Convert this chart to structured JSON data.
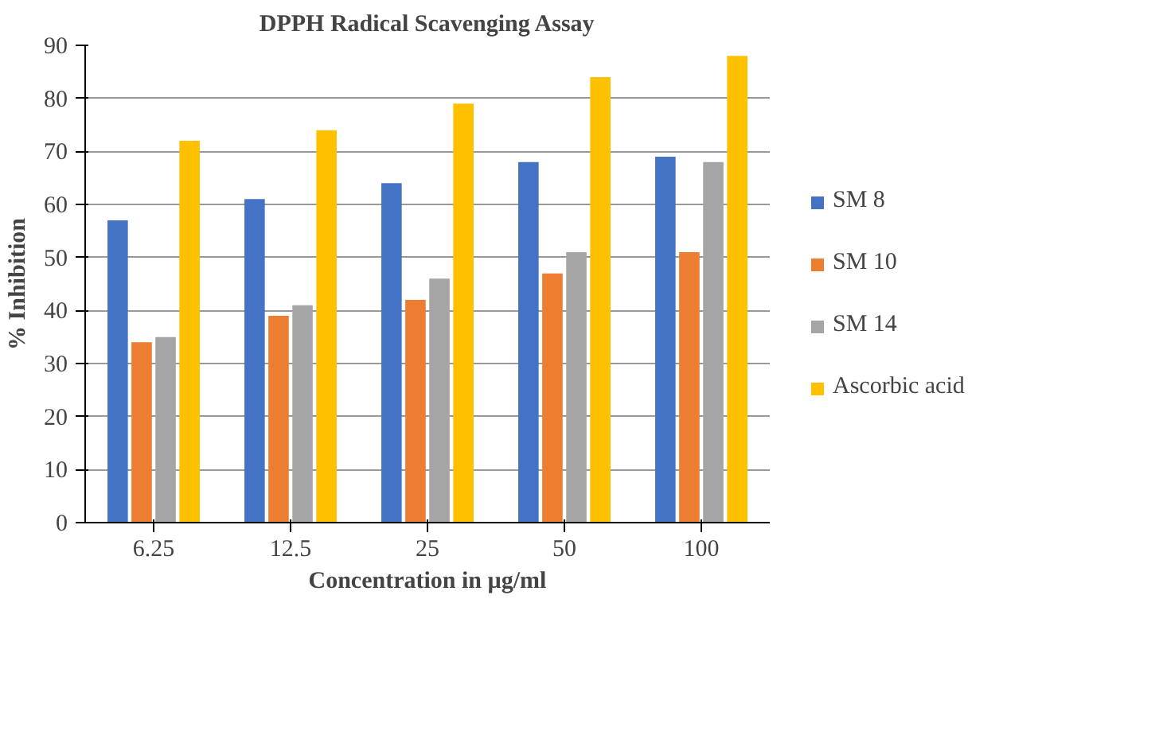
{
  "chart_data": {
    "type": "bar",
    "title": "DPPH Radical Scavenging Assay",
    "xlabel": "Concentration in µg/ml",
    "ylabel": "% Inhibition",
    "categories": [
      "6.25",
      "12.5",
      "25",
      "50",
      "100"
    ],
    "series": [
      {
        "name": "SM 8",
        "color": "#4472c4",
        "values": [
          57,
          61,
          64,
          68,
          69
        ]
      },
      {
        "name": "SM 10",
        "color": "#ed7d31",
        "values": [
          34,
          39,
          42,
          47,
          51
        ]
      },
      {
        "name": "SM 14",
        "color": "#a5a5a5",
        "values": [
          35,
          41,
          46,
          51,
          68
        ]
      },
      {
        "name": "Ascorbic acid",
        "color": "#ffc000",
        "values": [
          72,
          74,
          79,
          84,
          88
        ]
      }
    ],
    "ylim": [
      0,
      90
    ],
    "yticks": [
      0,
      10,
      20,
      30,
      40,
      50,
      60,
      70,
      80,
      90
    ],
    "grid": "y",
    "legend": "right"
  }
}
